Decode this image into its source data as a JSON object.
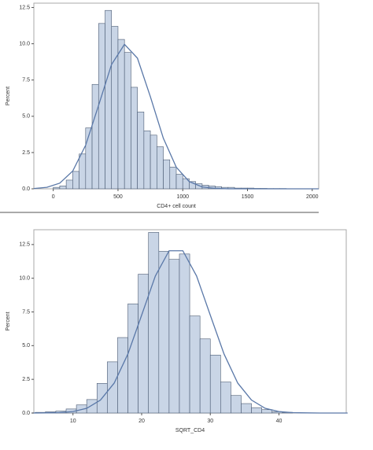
{
  "chart_data": [
    {
      "type": "histogram",
      "ylabel": "Percent",
      "xlabel": "CD4+ cell count",
      "bins": [
        0,
        50,
        100,
        150,
        200,
        250,
        300,
        350,
        400,
        450,
        500,
        550,
        600,
        650,
        700,
        750,
        800,
        850,
        900,
        950,
        1000,
        1050,
        1100,
        1150,
        1200,
        1250,
        1300,
        1350,
        1400,
        1450,
        1500,
        1550,
        1600,
        1650,
        1700,
        1750,
        1800,
        1850,
        1900,
        1950
      ],
      "values": [
        0.1,
        0.2,
        0.6,
        1.2,
        2.4,
        4.2,
        7.2,
        11.4,
        12.3,
        11.2,
        10.3,
        9.4,
        7.0,
        5.3,
        4.0,
        3.7,
        2.9,
        2.0,
        1.5,
        1.0,
        0.7,
        0.5,
        0.35,
        0.25,
        0.2,
        0.15,
        0.1,
        0.1,
        0.05,
        0.05,
        0.05,
        0.03,
        0.03,
        0.02,
        0.02,
        0.02,
        0.01,
        0.01,
        0.01
      ],
      "color": "#c9d5e6",
      "curve": {
        "color": "#5a78a8",
        "x": [
          -150,
          -50,
          50,
          150,
          250,
          350,
          450,
          550,
          650,
          750,
          850,
          950,
          1050,
          1150,
          1250,
          1350,
          1450,
          1550,
          1650,
          1750,
          1850,
          1950,
          2050
        ],
        "values": [
          0.02,
          0.1,
          0.39,
          1.22,
          3.0,
          5.75,
          8.57,
          9.96,
          9.01,
          6.35,
          3.49,
          1.49,
          0.5,
          0.13,
          0.03,
          0,
          0,
          0,
          0,
          0,
          0,
          0,
          0
        ]
      },
      "xlim": [
        -150,
        2050
      ],
      "xticks": [
        0,
        500,
        1000,
        1500,
        2000
      ],
      "ylim": [
        0,
        12.8
      ],
      "yticks": [
        {
          "value": 0,
          "label": "0.0"
        },
        2.5,
        {
          "value": 5,
          "label": "5.0"
        },
        7.5,
        {
          "value": 10,
          "label": "10.0"
        },
        12.5
      ]
    },
    {
      "type": "histogram",
      "ylabel": "Percent",
      "xlabel": "SQRT_CD4",
      "bins": [
        4.5,
        6,
        7.5,
        9,
        10.5,
        12,
        13.5,
        15,
        16.5,
        18,
        19.5,
        21,
        22.5,
        24,
        25.5,
        27,
        28.5,
        30,
        31.5,
        33,
        34.5,
        36,
        37.5,
        39,
        40.5,
        42
      ],
      "values": [
        0.05,
        0.1,
        0.15,
        0.3,
        0.6,
        1.0,
        2.2,
        3.8,
        5.6,
        8.1,
        10.3,
        13.4,
        12.0,
        11.4,
        11.8,
        7.2,
        5.5,
        4.3,
        2.3,
        1.3,
        0.7,
        0.4,
        0.25,
        0.1,
        0.05
      ],
      "color": "#c9d5e6",
      "curve": {
        "color": "#5a78a8",
        "x": [
          4,
          6,
          8,
          10,
          12,
          14,
          16,
          18,
          20,
          22,
          24,
          26,
          28,
          30,
          32,
          34,
          36,
          38,
          40,
          42,
          44,
          46,
          48,
          50
        ],
        "values": [
          0,
          0.01,
          0.03,
          0.11,
          0.35,
          0.96,
          2.22,
          4.38,
          7.26,
          10.17,
          12.04,
          12.04,
          10.17,
          7.26,
          4.38,
          2.22,
          0.96,
          0.35,
          0.11,
          0.03,
          0.01,
          0,
          0,
          0
        ]
      },
      "xlim": [
        4.3,
        49.8
      ],
      "xticks": [
        10,
        20,
        30,
        40
      ],
      "ylim": [
        0,
        13.6
      ],
      "yticks": [
        {
          "value": 0,
          "label": "0.0"
        },
        2.5,
        {
          "value": 5,
          "label": "5.0"
        },
        7.5,
        {
          "value": 10,
          "label": "10.0"
        },
        12.5
      ]
    }
  ]
}
